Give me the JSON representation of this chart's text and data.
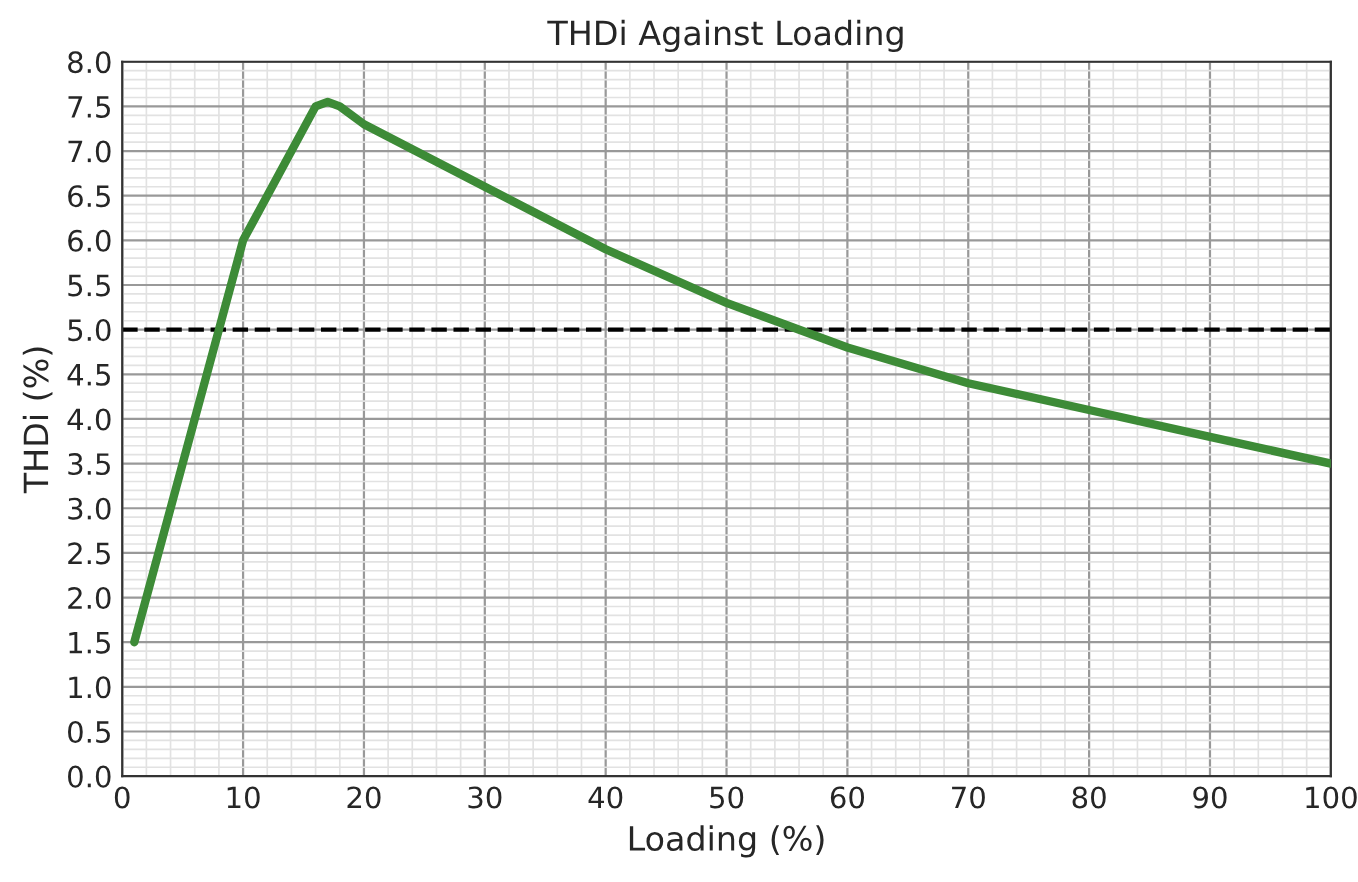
{
  "chart_data": {
    "type": "line",
    "title": "THDi Against Loading",
    "xlabel": "Loading (%)",
    "ylabel": "THDi (%)",
    "series": [
      {
        "color": "#3d8b37",
        "x": [
          1,
          10,
          16,
          17,
          18,
          20,
          30,
          40,
          50,
          60,
          70,
          80,
          90,
          100
        ],
        "values": [
          1.5,
          6.0,
          7.5,
          7.55,
          7.5,
          7.3,
          6.6,
          5.9,
          5.3,
          4.8,
          4.4,
          4.1,
          3.8,
          3.5
        ]
      }
    ],
    "xlim": [
      0,
      100
    ],
    "xticks": [
      0,
      10,
      20,
      30,
      40,
      50,
      60,
      70,
      80,
      90,
      100
    ],
    "ylim": [
      0,
      8
    ],
    "yticks": [
      {
        "value": 0,
        "label": "0.0"
      },
      {
        "value": 0.5,
        "label": "0.5"
      },
      {
        "value": 1,
        "label": "1.0"
      },
      {
        "value": 1.5,
        "label": "1.5"
      },
      {
        "value": 2,
        "label": "2.0"
      },
      {
        "value": 2.5,
        "label": "2.5"
      },
      {
        "value": 3,
        "label": "3.0"
      },
      {
        "value": 3.5,
        "label": "3.5"
      },
      {
        "value": 4,
        "label": "4.0"
      },
      {
        "value": 4.5,
        "label": "4.5"
      },
      {
        "value": 5,
        "label": "5.0"
      },
      {
        "value": 5.5,
        "label": "5.5"
      },
      {
        "value": 6,
        "label": "6.0"
      },
      {
        "value": 6.5,
        "label": "6.5"
      },
      {
        "value": 7,
        "label": "7.0"
      },
      {
        "value": 7.5,
        "label": "7.5"
      },
      {
        "value": 8,
        "label": "8.0"
      }
    ],
    "ref_lines": [
      {
        "axis": "y",
        "value": 5,
        "color": "#000000",
        "line_style": "dashed"
      }
    ],
    "grid": true,
    "marker": "none",
    "line_style": "solid"
  }
}
